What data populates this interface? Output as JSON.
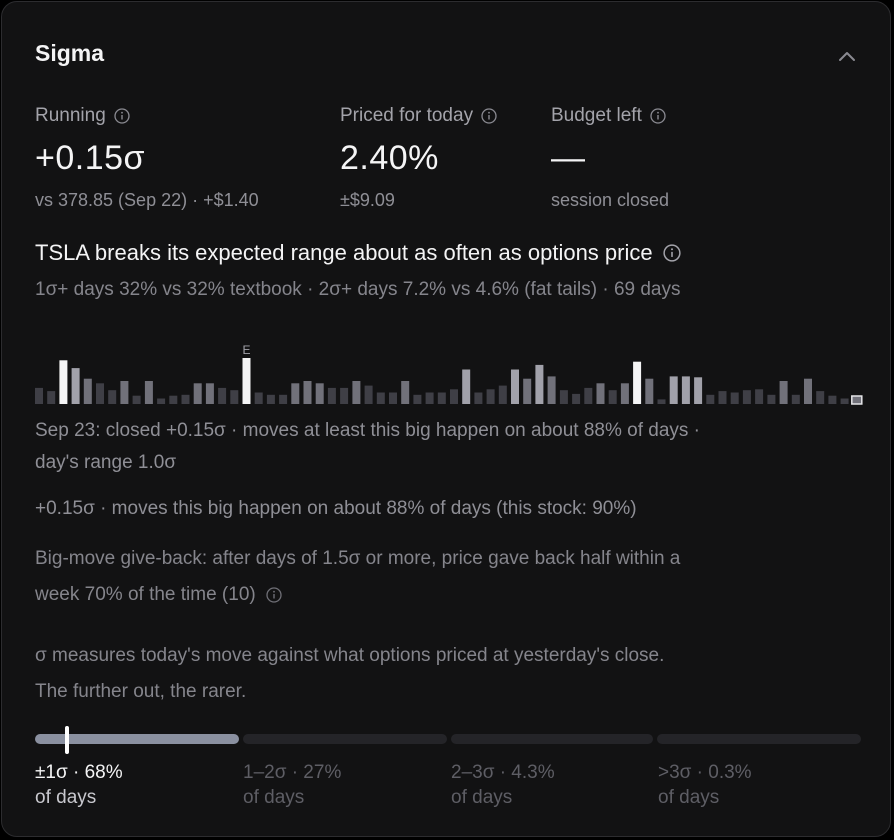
{
  "header": {
    "title": "Sigma"
  },
  "stats": [
    {
      "label": "Running",
      "value": "+0.15σ",
      "sub": "vs 378.85 (Sep 22) · +$1.40"
    },
    {
      "label": "Priced for today",
      "value": "2.40%",
      "sub": "±$9.09"
    },
    {
      "label": "Budget left",
      "value": "—",
      "sub": "session closed"
    }
  ],
  "headline": "TSLA breaks its expected range about as often as options price",
  "subline": "1σ+ days 32% vs 32% textbook · 2σ+ days 7.2% vs 4.6% (fat tails) · 69 days",
  "bar_chart": {
    "earnings_marker": "E",
    "values": [
      0.35,
      0.28,
      0.95,
      0.78,
      0.55,
      0.45,
      0.3,
      0.5,
      0.18,
      0.5,
      0.12,
      0.18,
      0.2,
      0.45,
      0.45,
      0.35,
      0.3,
      1.0,
      0.25,
      0.2,
      0.2,
      0.45,
      0.5,
      0.45,
      0.35,
      0.35,
      0.5,
      0.4,
      0.25,
      0.25,
      0.5,
      0.2,
      0.25,
      0.25,
      0.32,
      0.75,
      0.25,
      0.32,
      0.4,
      0.75,
      0.55,
      0.85,
      0.6,
      0.3,
      0.22,
      0.35,
      0.45,
      0.3,
      0.45,
      0.92,
      0.55,
      0.1,
      0.6,
      0.6,
      0.58,
      0.2,
      0.28,
      0.25,
      0.3,
      0.32,
      0.2,
      0.5,
      0.2,
      0.55,
      0.28,
      0.18,
      0.12
    ],
    "colors": [
      "#3f3f46",
      "#3f3f46",
      "#f4f4f5",
      "#a1a1aa",
      "#71717a",
      "#3f3f46",
      "#3f3f46",
      "#71717a",
      "#3f3f46",
      "#71717a",
      "#3f3f46",
      "#3f3f46",
      "#3f3f46",
      "#71717a",
      "#71717a",
      "#3f3f46",
      "#3f3f46",
      "#f4f4f5",
      "#3f3f46",
      "#3f3f46",
      "#3f3f46",
      "#71717a",
      "#71717a",
      "#71717a",
      "#3f3f46",
      "#3f3f46",
      "#71717a",
      "#3f3f46",
      "#3f3f46",
      "#3f3f46",
      "#71717a",
      "#3f3f46",
      "#3f3f46",
      "#3f3f46",
      "#3f3f46",
      "#a1a1aa",
      "#3f3f46",
      "#3f3f46",
      "#3f3f46",
      "#a1a1aa",
      "#71717a",
      "#a1a1aa",
      "#71717a",
      "#3f3f46",
      "#3f3f46",
      "#3f3f46",
      "#71717a",
      "#3f3f46",
      "#71717a",
      "#f4f4f5",
      "#71717a",
      "#3f3f46",
      "#a1a1aa",
      "#a1a1aa",
      "#a1a1aa",
      "#3f3f46",
      "#3f3f46",
      "#3f3f46",
      "#3f3f46",
      "#3f3f46",
      "#3f3f46",
      "#71717a",
      "#3f3f46",
      "#71717a",
      "#3f3f46",
      "#3f3f46",
      "#3f3f46"
    ],
    "earnings_index": 17,
    "today_value": 0.12
  },
  "day_detail_line1": "Sep 23: closed +0.15σ · moves at least this big happen on about 88% of days ·",
  "day_detail_line2": "day's range 1.0σ",
  "move_frequency": "+0.15σ · moves this big happen on about 88% of days (this stock: 90%)",
  "giveback_line1": "Big-move give-back: after days of 1.5σ or more, price gave back half within a",
  "giveback_line2": "week 70% of the time (10)",
  "explainer_line1": "σ measures today's move against what options priced at yesterday's close.",
  "explainer_line2": "The further out, the rarer.",
  "bands": [
    {
      "range": "±1σ · 68%",
      "unit": "of days"
    },
    {
      "range": "1–2σ · 27%",
      "unit": "of days"
    },
    {
      "range": "2–3σ · 4.3%",
      "unit": "of days"
    },
    {
      "range": ">3σ · 0.3%",
      "unit": "of days"
    }
  ],
  "colors": {
    "active_band": "#8a90a0",
    "inactive_band": "#242428",
    "accent_text": "#f4f4f5"
  }
}
